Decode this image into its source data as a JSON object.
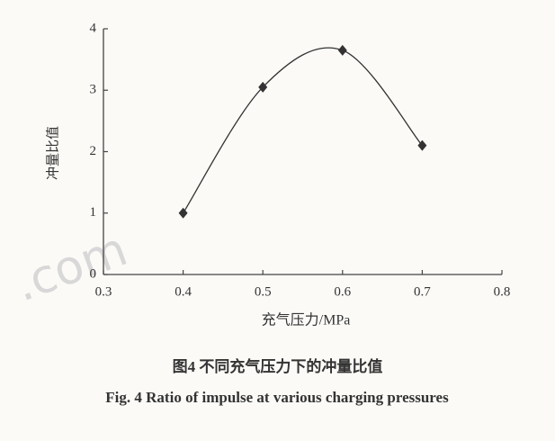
{
  "chart_data": {
    "type": "line",
    "x_label": "充气压力/MPa",
    "y_label": "冲量比值",
    "caption_cn": "图4 不同充气压力下的冲量比值",
    "caption_en": "Fig. 4 Ratio of impulse at various charging pressures",
    "watermark": ".com",
    "x": [
      0.4,
      0.5,
      0.6,
      0.7
    ],
    "series": [
      {
        "name": "冲量比值",
        "color": "#333333",
        "values": [
          1.0,
          3.05,
          3.65,
          2.1
        ]
      }
    ],
    "xlim": [
      0.3,
      0.8
    ],
    "xticks": [
      0.3,
      0.4,
      0.5,
      0.6,
      0.7,
      0.8
    ],
    "ylim": [
      0,
      4
    ],
    "yticks": [
      0,
      1,
      2,
      3,
      4
    ],
    "smooth": true,
    "grid": false
  }
}
